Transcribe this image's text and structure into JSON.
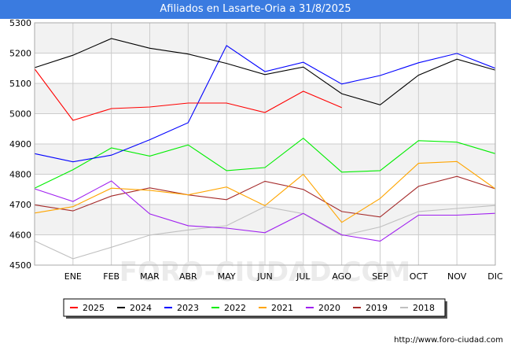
{
  "colors": {
    "header_bg": "#3a7be0",
    "band": "#f2f2f2",
    "grid": "#cccccc"
  },
  "chart_data": {
    "type": "line",
    "title": "Afiliados en Lasarte-Oria a 31/8/2025",
    "categories": [
      "DIC",
      "ENE",
      "FEB",
      "MAR",
      "ABR",
      "MAY",
      "JUN",
      "JUL",
      "AGO",
      "SEP",
      "OCT",
      "NOV",
      "DIC"
    ],
    "x_tick_labels": [
      "",
      "ENE",
      "FEB",
      "MAR",
      "ABR",
      "MAY",
      "JUN",
      "JUL",
      "AGO",
      "SEP",
      "OCT",
      "NOV",
      "DIC"
    ],
    "ylim": [
      4500,
      5300
    ],
    "yticks": [
      4500,
      4600,
      4700,
      4800,
      4900,
      5000,
      5100,
      5200,
      5300
    ],
    "grid": true,
    "legend_position": "bottom",
    "series": [
      {
        "name": "2025",
        "color": "#ff0000",
        "values": [
          5148,
          4978,
          5017,
          5022,
          5035,
          5035,
          5004,
          5074,
          5020,
          null,
          null,
          null,
          null
        ]
      },
      {
        "name": "2024",
        "color": "#000000",
        "values": [
          5152,
          5193,
          5248,
          5216,
          5197,
          5166,
          5129,
          5154,
          5066,
          5029,
          5127,
          5180,
          5144
        ]
      },
      {
        "name": "2023",
        "color": "#0000ff",
        "values": [
          4868,
          4841,
          4863,
          4914,
          4970,
          5225,
          5139,
          5170,
          5098,
          5126,
          5168,
          5199,
          5150
        ]
      },
      {
        "name": "2022",
        "color": "#00ee00",
        "values": [
          4754,
          4815,
          4887,
          4860,
          4897,
          4812,
          4822,
          4919,
          4807,
          4812,
          4911,
          4906,
          4868
        ]
      },
      {
        "name": "2021",
        "color": "#ffa500",
        "values": [
          4672,
          4693,
          4754,
          4747,
          4732,
          4758,
          4696,
          4800,
          4641,
          4720,
          4836,
          4842,
          4752
        ]
      },
      {
        "name": "2020",
        "color": "#a020f0",
        "values": [
          4752,
          4710,
          4778,
          4669,
          4630,
          4622,
          4607,
          4671,
          4600,
          4579,
          4665,
          4665,
          4671
        ]
      },
      {
        "name": "2019",
        "color": "#a52a2a",
        "values": [
          4699,
          4679,
          4728,
          4755,
          4732,
          4716,
          4777,
          4750,
          4677,
          4659,
          4760,
          4793,
          4752
        ]
      },
      {
        "name": "2018",
        "color": "#c0c0c0",
        "values": [
          4580,
          4521,
          4559,
          4599,
          4616,
          4630,
          4693,
          4670,
          4597,
          4626,
          4677,
          4687,
          4697
        ]
      }
    ]
  },
  "footer": {
    "url": "http://www.foro-ciudad.com"
  },
  "watermark": "FORO-CIUDAD.COM"
}
